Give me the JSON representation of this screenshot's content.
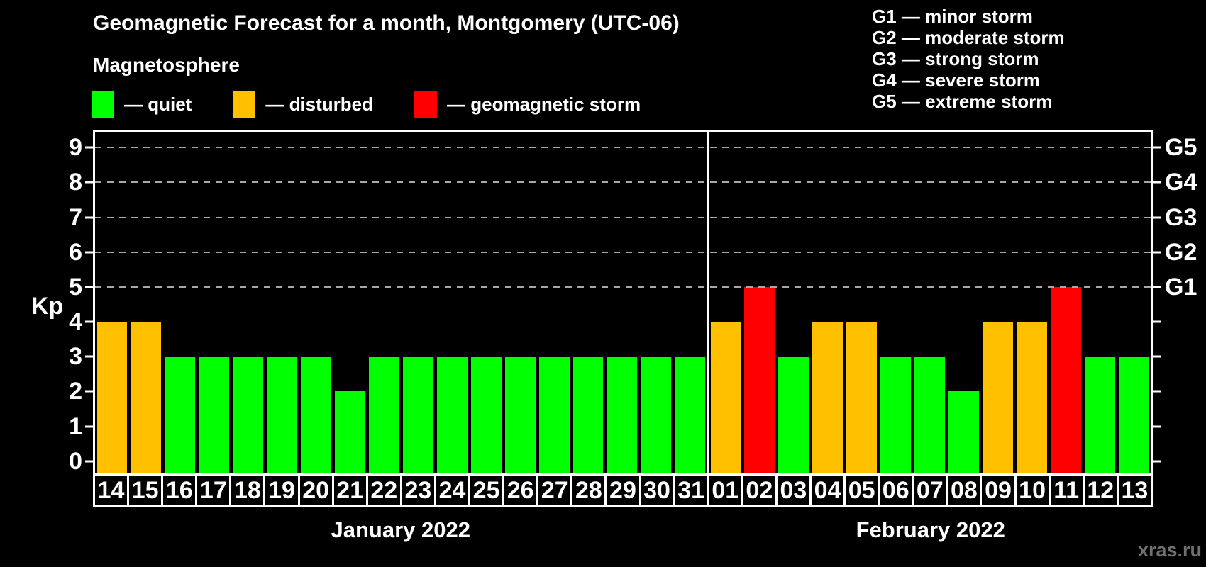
{
  "header": {
    "title": "Geomagnetic Forecast for a month, Montgomery (UTC-06)",
    "subtitle": "Magnetosphere"
  },
  "legend": {
    "dash": "—",
    "items": [
      {
        "label": "quiet",
        "color": "#00ff00",
        "status": "quiet"
      },
      {
        "label": "disturbed",
        "color": "#ffc000",
        "status": "disturbed"
      },
      {
        "label": "geomagnetic storm",
        "color": "#ff0000",
        "status": "storm"
      }
    ]
  },
  "storm_scale": {
    "dash": "—",
    "items": [
      {
        "code": "G1",
        "label": "minor storm"
      },
      {
        "code": "G2",
        "label": "moderate storm"
      },
      {
        "code": "G3",
        "label": "strong storm"
      },
      {
        "code": "G4",
        "label": "severe storm"
      },
      {
        "code": "G5",
        "label": "extreme storm"
      }
    ]
  },
  "watermark": "xras.ru",
  "chart_data": {
    "type": "bar",
    "title": "Geomagnetic Forecast for a month, Montgomery (UTC-06)",
    "ylabel": "Kp",
    "ylim": [
      0,
      9
    ],
    "yticks": [
      0,
      1,
      2,
      3,
      4,
      5,
      6,
      7,
      8,
      9
    ],
    "gridlines": [
      5,
      6,
      7,
      8,
      9
    ],
    "grid": "dashed horizontal at storm levels only",
    "legend_position": "top-left",
    "right_axis": [
      {
        "kp": 5,
        "label": "G1"
      },
      {
        "kp": 6,
        "label": "G2"
      },
      {
        "kp": 7,
        "label": "G3"
      },
      {
        "kp": 8,
        "label": "G4"
      },
      {
        "kp": 9,
        "label": "G5"
      }
    ],
    "status_colors": {
      "quiet": "#00ff00",
      "disturbed": "#ffc000",
      "storm": "#ff0000"
    },
    "months": [
      {
        "label": "January 2022",
        "days": [
          {
            "day": "14",
            "kp": 4,
            "status": "disturbed"
          },
          {
            "day": "15",
            "kp": 4,
            "status": "disturbed"
          },
          {
            "day": "16",
            "kp": 3,
            "status": "quiet"
          },
          {
            "day": "17",
            "kp": 3,
            "status": "quiet"
          },
          {
            "day": "18",
            "kp": 3,
            "status": "quiet"
          },
          {
            "day": "19",
            "kp": 3,
            "status": "quiet"
          },
          {
            "day": "20",
            "kp": 3,
            "status": "quiet"
          },
          {
            "day": "21",
            "kp": 2,
            "status": "quiet"
          },
          {
            "day": "22",
            "kp": 3,
            "status": "quiet"
          },
          {
            "day": "23",
            "kp": 3,
            "status": "quiet"
          },
          {
            "day": "24",
            "kp": 3,
            "status": "quiet"
          },
          {
            "day": "25",
            "kp": 3,
            "status": "quiet"
          },
          {
            "day": "26",
            "kp": 3,
            "status": "quiet"
          },
          {
            "day": "27",
            "kp": 3,
            "status": "quiet"
          },
          {
            "day": "28",
            "kp": 3,
            "status": "quiet"
          },
          {
            "day": "29",
            "kp": 3,
            "status": "quiet"
          },
          {
            "day": "30",
            "kp": 3,
            "status": "quiet"
          },
          {
            "day": "31",
            "kp": 3,
            "status": "quiet"
          }
        ]
      },
      {
        "label": "February 2022",
        "days": [
          {
            "day": "01",
            "kp": 4,
            "status": "disturbed"
          },
          {
            "day": "02",
            "kp": 5,
            "status": "storm"
          },
          {
            "day": "03",
            "kp": 3,
            "status": "quiet"
          },
          {
            "day": "04",
            "kp": 4,
            "status": "disturbed"
          },
          {
            "day": "05",
            "kp": 4,
            "status": "disturbed"
          },
          {
            "day": "06",
            "kp": 3,
            "status": "quiet"
          },
          {
            "day": "07",
            "kp": 3,
            "status": "quiet"
          },
          {
            "day": "08",
            "kp": 2,
            "status": "quiet"
          },
          {
            "day": "09",
            "kp": 4,
            "status": "disturbed"
          },
          {
            "day": "10",
            "kp": 4,
            "status": "disturbed"
          },
          {
            "day": "11",
            "kp": 5,
            "status": "storm"
          },
          {
            "day": "12",
            "kp": 3,
            "status": "quiet"
          },
          {
            "day": "13",
            "kp": 3,
            "status": "quiet"
          }
        ]
      }
    ]
  }
}
